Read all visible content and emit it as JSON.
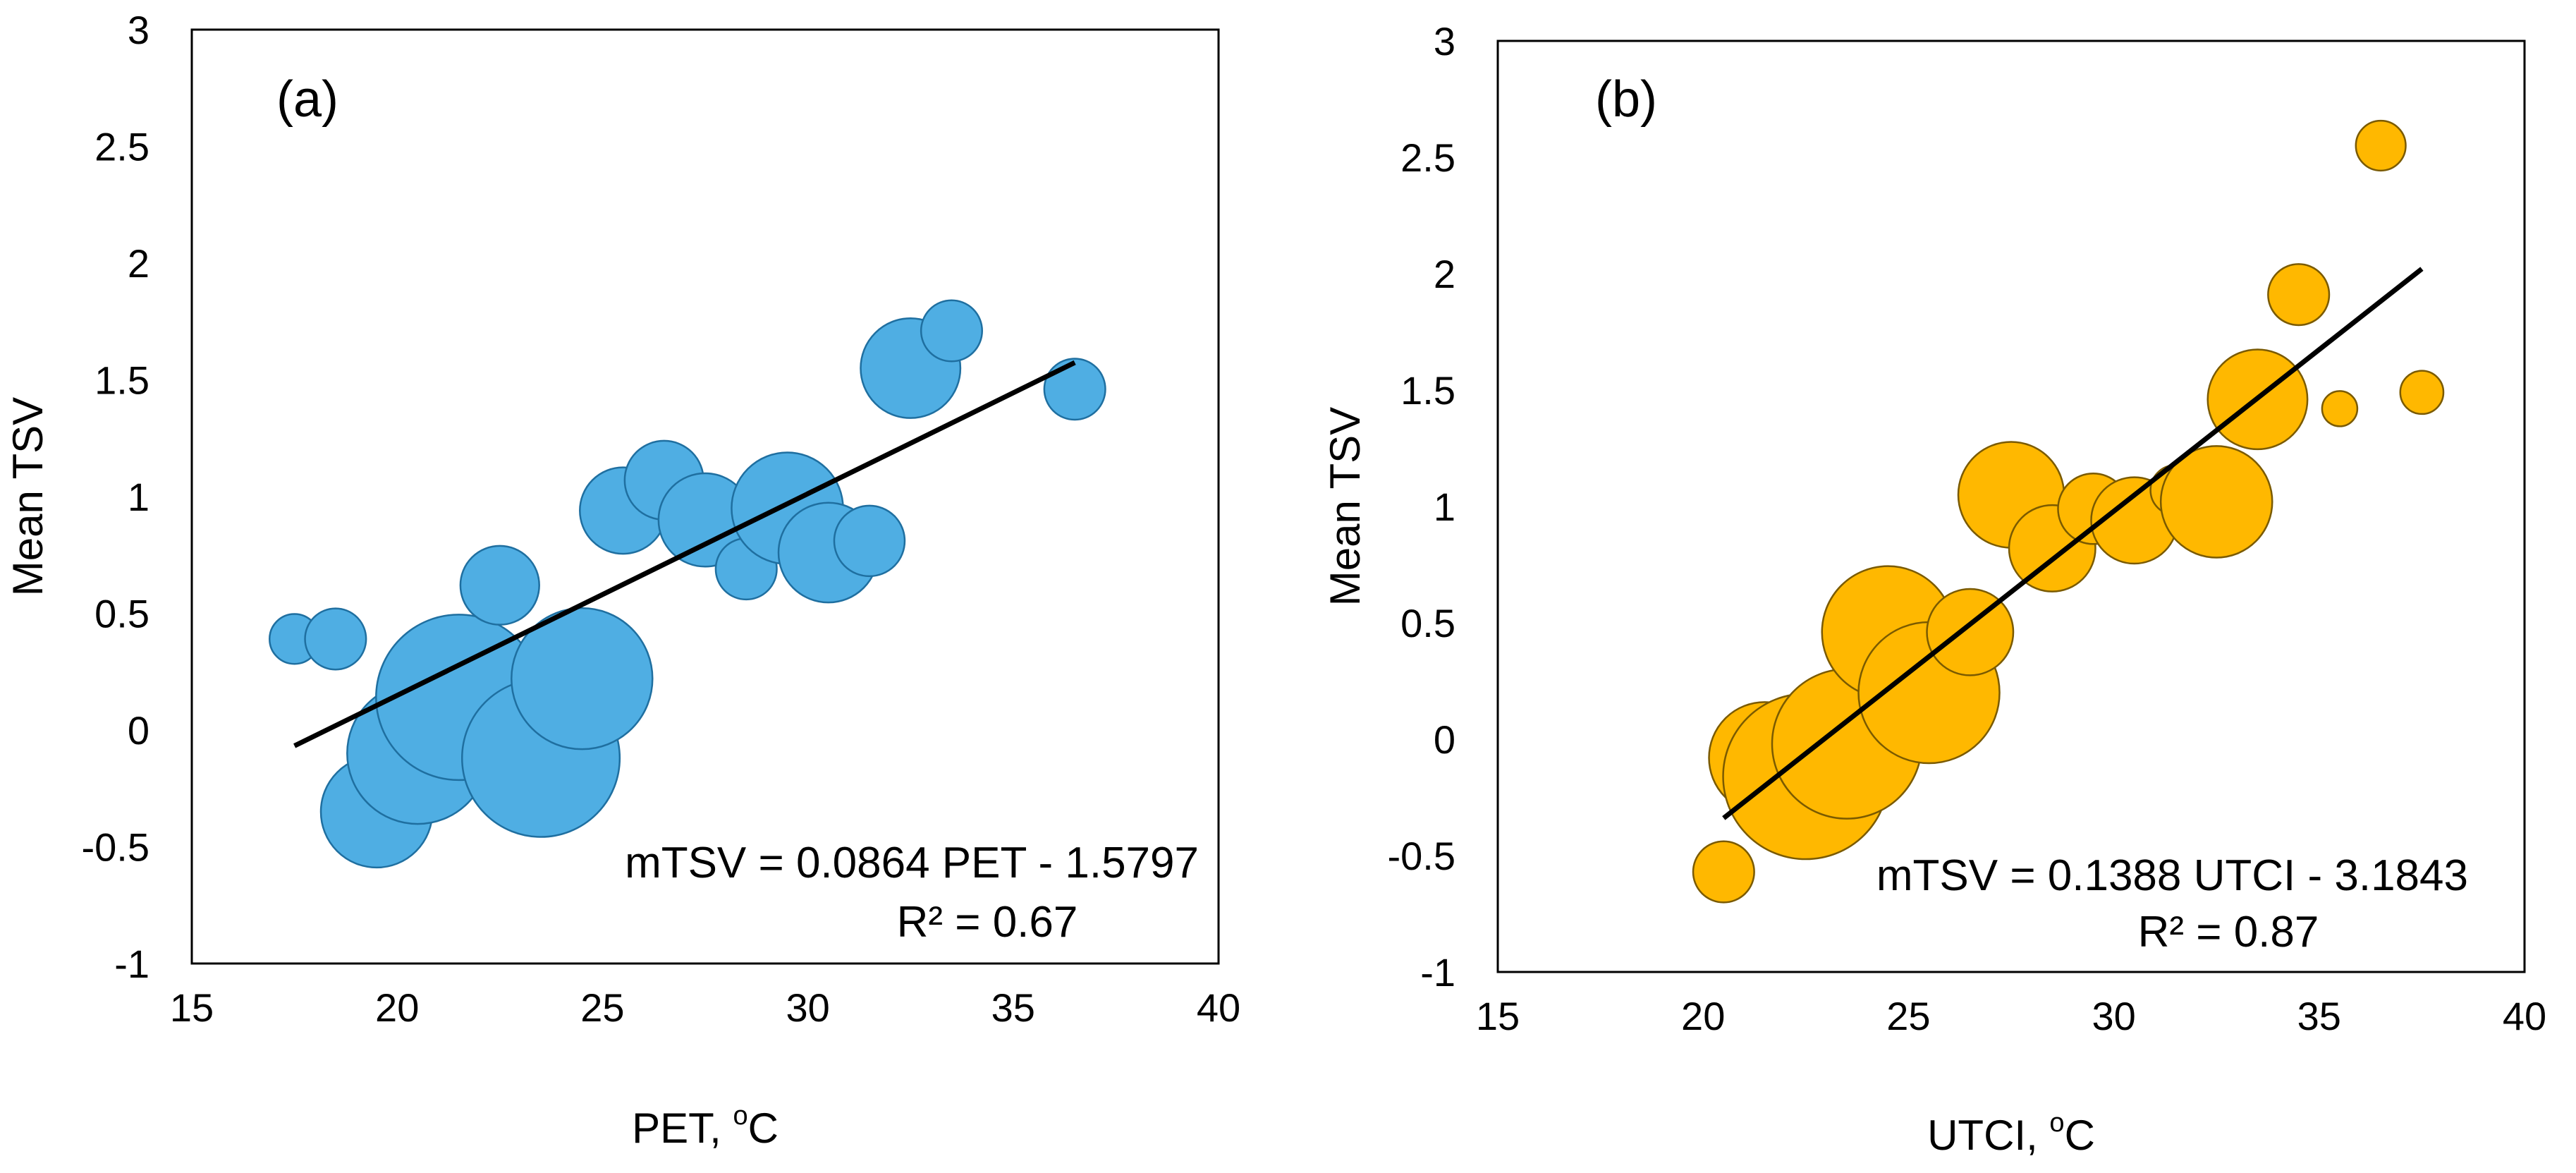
{
  "chart_data": [
    {
      "type": "scatter",
      "panel_label": "(a)",
      "xlabel": "PET,",
      "xlabel_sup": "o",
      "xlabel_unit": "C",
      "ylabel": "Mean TSV",
      "xlim": [
        15,
        40
      ],
      "ylim": [
        -1,
        3
      ],
      "x_ticks": [
        15,
        20,
        25,
        30,
        35,
        40
      ],
      "y_ticks": [
        -1,
        -0.5,
        0,
        0.5,
        1,
        1.5,
        2,
        2.5,
        3
      ],
      "grid": false,
      "legend": "none",
      "color": "#4FAEE3",
      "stroke": "#1F6FA0",
      "equation": "mTSV = 0.0864 PET - 1.5797",
      "r2": "R² = 0.67",
      "trendline": {
        "slope": 0.0864,
        "intercept": -1.5797,
        "x_range": [
          17.5,
          36.5
        ]
      },
      "points": [
        {
          "x": 17.5,
          "y": 0.39,
          "size": 2
        },
        {
          "x": 18.5,
          "y": 0.39,
          "size": 3
        },
        {
          "x": 19.5,
          "y": -0.35,
          "size": 10
        },
        {
          "x": 20.5,
          "y": -0.1,
          "size": 16
        },
        {
          "x": 21.5,
          "y": 0.14,
          "size": 22
        },
        {
          "x": 22.5,
          "y": 0.62,
          "size": 5
        },
        {
          "x": 23.5,
          "y": -0.12,
          "size": 20
        },
        {
          "x": 24.5,
          "y": 0.22,
          "size": 16
        },
        {
          "x": 25.5,
          "y": 0.94,
          "size": 6
        },
        {
          "x": 26.5,
          "y": 1.07,
          "size": 5
        },
        {
          "x": 27.5,
          "y": 0.9,
          "size": 7
        },
        {
          "x": 28.5,
          "y": 0.69,
          "size": 3
        },
        {
          "x": 29.5,
          "y": 0.95,
          "size": 10
        },
        {
          "x": 30.5,
          "y": 0.76,
          "size": 8
        },
        {
          "x": 31.5,
          "y": 0.81,
          "size": 4
        },
        {
          "x": 32.5,
          "y": 1.55,
          "size": 8
        },
        {
          "x": 33.5,
          "y": 1.71,
          "size": 3
        },
        {
          "x": 36.5,
          "y": 1.46,
          "size": 3
        }
      ]
    },
    {
      "type": "scatter",
      "panel_label": "(b)",
      "xlabel": "UTCI,",
      "xlabel_sup": "o",
      "xlabel_unit": "C",
      "ylabel": "Mean TSV",
      "xlim": [
        15,
        40
      ],
      "ylim": [
        -1,
        3
      ],
      "x_ticks": [
        15,
        20,
        25,
        30,
        35,
        40
      ],
      "y_ticks": [
        -1,
        -0.5,
        0,
        0.5,
        1,
        1.5,
        2,
        2.5,
        3
      ],
      "grid": false,
      "legend": "none",
      "color": "#FFB800",
      "stroke": "#7A5A00",
      "equation": "mTSV = 0.1388 UTCI - 3.1843",
      "r2": "R² = 0.87",
      "trendline": {
        "slope": 0.1388,
        "intercept": -3.1843,
        "x_range": [
          20.5,
          37.5
        ]
      },
      "points": [
        {
          "x": 20.5,
          "y": -0.57,
          "size": 3
        },
        {
          "x": 21.5,
          "y": -0.08,
          "size": 10
        },
        {
          "x": 22.5,
          "y": -0.16,
          "size": 22
        },
        {
          "x": 23.5,
          "y": -0.02,
          "size": 18
        },
        {
          "x": 24.5,
          "y": 0.46,
          "size": 14
        },
        {
          "x": 25.5,
          "y": 0.2,
          "size": 16
        },
        {
          "x": 26.5,
          "y": 0.46,
          "size": 6
        },
        {
          "x": 27.5,
          "y": 1.05,
          "size": 9
        },
        {
          "x": 28.5,
          "y": 0.82,
          "size": 6
        },
        {
          "x": 29.5,
          "y": 0.99,
          "size": 4
        },
        {
          "x": 30.5,
          "y": 0.94,
          "size": 6
        },
        {
          "x": 31.5,
          "y": 1.07,
          "size": 2
        },
        {
          "x": 32.5,
          "y": 1.02,
          "size": 10
        },
        {
          "x": 33.5,
          "y": 1.46,
          "size": 8
        },
        {
          "x": 34.5,
          "y": 1.91,
          "size": 3
        },
        {
          "x": 35.5,
          "y": 1.42,
          "size": 1
        },
        {
          "x": 36.5,
          "y": 2.55,
          "size": 2
        },
        {
          "x": 37.5,
          "y": 1.49,
          "size": 1.5
        }
      ]
    }
  ]
}
